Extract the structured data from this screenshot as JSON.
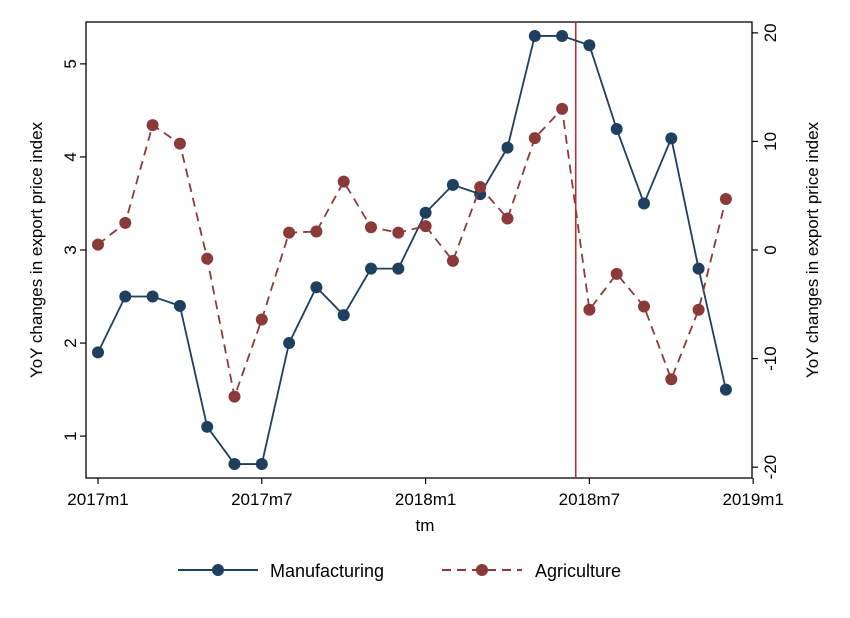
{
  "chart_data": {
    "type": "line",
    "x": [
      "2017m1",
      "2017m2",
      "2017m3",
      "2017m4",
      "2017m5",
      "2017m6",
      "2017m7",
      "2017m8",
      "2017m9",
      "2017m10",
      "2017m11",
      "2017m12",
      "2018m1",
      "2018m2",
      "2018m3",
      "2018m4",
      "2018m5",
      "2018m6",
      "2018m7",
      "2018m8",
      "2018m9",
      "2018m10",
      "2018m11",
      "2018m12"
    ],
    "xlabel": "tm",
    "x_tick_labels": [
      "2017m1",
      "2017m7",
      "2018m1",
      "2018m7",
      "2019m1"
    ],
    "ylabel_left": "YoY changes in export price index",
    "ylabel_right": "YoY changes in export price index",
    "ylim_left": [
      0.55,
      5.45
    ],
    "ylim_right": [
      -21.0,
      21.0
    ],
    "y_left_ticks": [
      "1",
      "2",
      "3",
      "4",
      "5"
    ],
    "y_right_ticks": [
      "-20",
      "-10",
      "0",
      "10",
      "20"
    ],
    "vertical_line_x": "2018m6.5",
    "series": [
      {
        "name": "Manufacturing",
        "axis": "left",
        "style": "solid",
        "color": "#1f3f5f",
        "values": [
          1.9,
          2.5,
          2.5,
          2.4,
          1.1,
          0.7,
          0.7,
          2.0,
          2.6,
          2.3,
          2.8,
          2.8,
          3.4,
          3.7,
          3.6,
          4.1,
          5.3,
          5.3,
          5.2,
          4.3,
          3.5,
          4.2,
          2.8,
          1.5
        ]
      },
      {
        "name": "Agriculture",
        "axis": "right",
        "style": "dashed",
        "color": "#8b3a3a",
        "values": [
          0.5,
          2.5,
          11.5,
          9.8,
          -0.8,
          -13.5,
          -6.4,
          1.6,
          1.7,
          6.3,
          2.1,
          1.6,
          2.2,
          -1.0,
          5.8,
          2.9,
          10.3,
          13.0,
          -5.5,
          -2.2,
          -5.2,
          -11.9,
          -5.5,
          4.7
        ]
      }
    ],
    "grid": false,
    "legend_position": "bottom",
    "vline_color": "#b22d3d"
  }
}
